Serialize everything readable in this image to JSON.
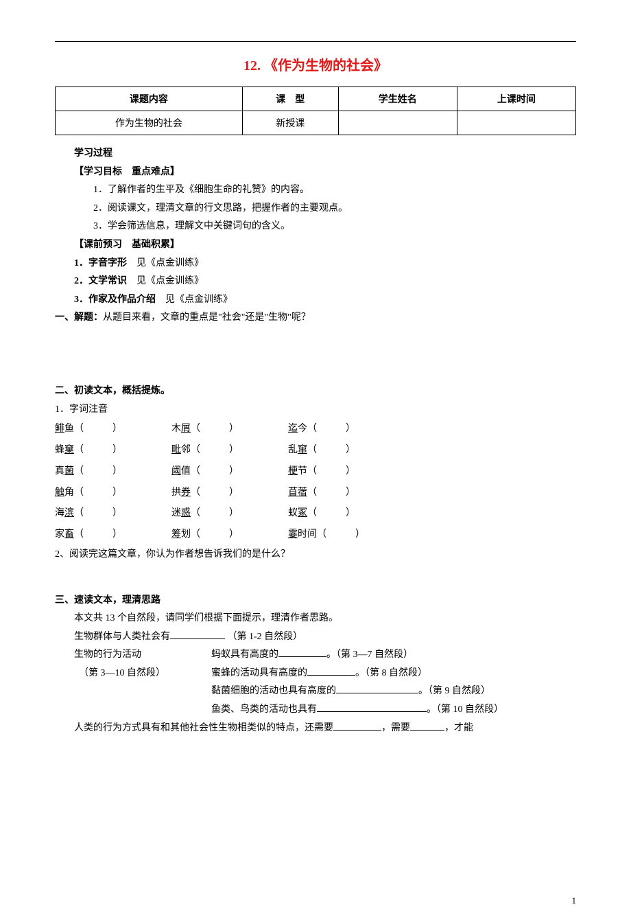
{
  "title": "12. 《作为生物的社会》",
  "table": {
    "headers": [
      "课题内容",
      "课　型",
      "学生姓名",
      "上课时间"
    ],
    "row": [
      "作为生物的社会",
      "新授课",
      "",
      ""
    ]
  },
  "process_heading": "学习过程",
  "objectives": {
    "heading": "【学习目标　重点难点】",
    "items": [
      "1．了解作者的生平及《细胞生命的礼赞》的内容。",
      "2．阅读课文，理清文章的行文思路，把握作者的主要观点。",
      "3．学会筛选信息，理解文中关键词句的含义。"
    ]
  },
  "preview": {
    "heading": "【课前预习　基础积累】",
    "items": [
      {
        "label": "1．字音字形",
        "rest": "　见《点金训练》"
      },
      {
        "label": "2．文学常识",
        "rest": "　见《点金训练》"
      },
      {
        "label": "3．作家及作品介绍",
        "rest": "　见《点金训练》"
      }
    ]
  },
  "q1": {
    "label": "一、解题：",
    "rest": "从题目来看，文章的重点是\"社会\"还是\"生物\"呢？"
  },
  "q2_heading": "二、初读文本，概括提炼。",
  "q2_sub1": "1．字词注音",
  "vocab": [
    [
      {
        "pre": "",
        "u": "鲱",
        "post": "鱼（"
      },
      {
        "pre": "木",
        "u": "屑",
        "post": "（"
      },
      {
        "pre": "",
        "u": "迄",
        "post": "今（"
      }
    ],
    [
      {
        "pre": "蜂",
        "u": "窠",
        "post": "（"
      },
      {
        "pre": "",
        "u": "毗",
        "post": "邻（"
      },
      {
        "pre": "乱",
        "u": "窜",
        "post": "（"
      }
    ],
    [
      {
        "pre": "真",
        "u": "菌",
        "post": "（"
      },
      {
        "pre": "",
        "u": "阈",
        "post": "值（"
      },
      {
        "pre": "",
        "u": "梗",
        "post": "节（"
      }
    ],
    [
      {
        "pre": "",
        "u": "触",
        "post": "角（"
      },
      {
        "pre": "拱",
        "u": "券",
        "post": "（"
      },
      {
        "pre": "",
        "u": "苜蓿",
        "post": "（"
      }
    ],
    [
      {
        "pre": "海",
        "u": "滨",
        "post": "（"
      },
      {
        "pre": "迷",
        "u": "惑",
        "post": "（"
      },
      {
        "pre": "蚁",
        "u": "冢",
        "post": "（"
      }
    ],
    [
      {
        "pre": "家",
        "u": "畜",
        "post": "（"
      },
      {
        "pre": "",
        "u": "筹",
        "post": "划（"
      },
      {
        "pre": "",
        "u": "霎",
        "post": "时间（"
      }
    ]
  ],
  "q2_sub2": "2、阅读完这篇文章，你认为作者想告诉我们的是什么？",
  "q3_heading": "三、速读文本，理清思路",
  "q3_intro": "本文共 13 个自然段，请同学们根据下面提示，理清作者思路。",
  "outline": {
    "l1a": "生物群体与人类社会有",
    "l1b": "（第 1-2 自然段）",
    "l2a": "生物的行为活动",
    "l2b": "蚂蚁具有高度的",
    "l2c": "。（第 3—7 自然段）",
    "l3a": "（第 3—10 自然段）",
    "l3b": "蜜蜂的活动具有高度的",
    "l3c": "。（第 8 自然段）",
    "l4a": "黏菌细胞的活动也具有高度的",
    "l4b": "。（第 9 自然段）",
    "l5a": "鱼类、鸟类的活动也具有",
    "l5b": "。（第 10 自然段）",
    "l6a": "人类的行为方式具有和其他社会性生物相类似的特点，还需要",
    "l6b": "，需要",
    "l6c": "，才能"
  },
  "page_number": "1"
}
